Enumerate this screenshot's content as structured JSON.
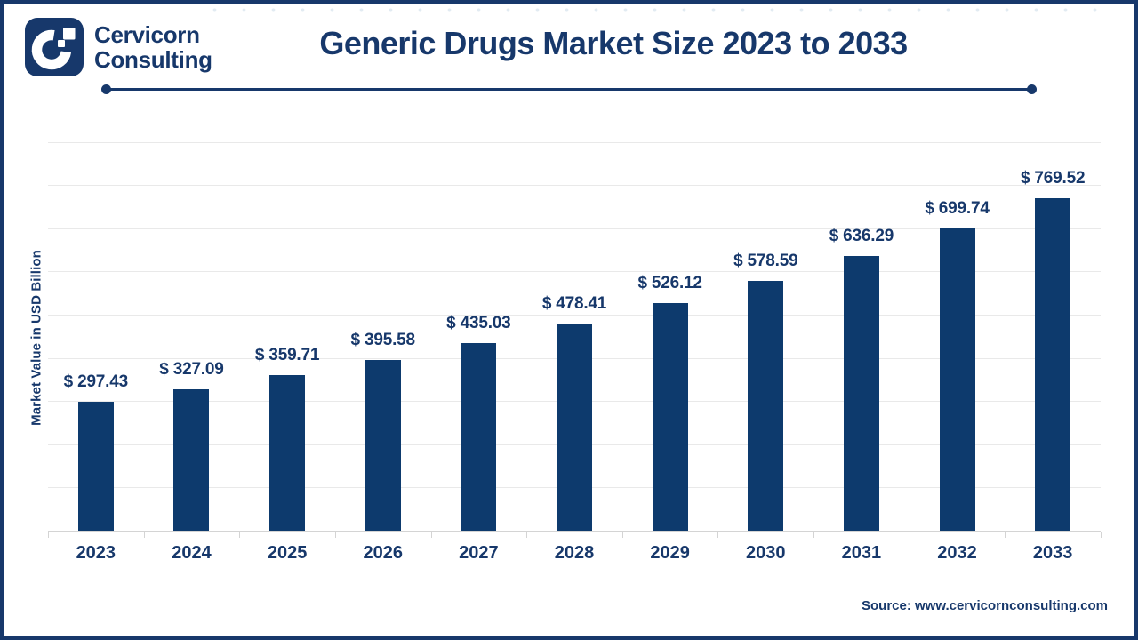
{
  "colors": {
    "navy": "#17386b",
    "bar": "#0d3a6d",
    "gridline": "#e9e9e9",
    "axis": "#d4d4d4",
    "bg": "#ffffff"
  },
  "header": {
    "logo_company_line1": "Cervicorn",
    "logo_company_line2": "Consulting",
    "title": "Generic Drugs Market Size 2023 to 2033"
  },
  "chart_data": {
    "type": "bar",
    "title": "Generic Drugs Market Size 2023 to 2033",
    "categories": [
      "2023",
      "2024",
      "2025",
      "2026",
      "2027",
      "2028",
      "2029",
      "2030",
      "2031",
      "2032",
      "2033"
    ],
    "values": [
      297.43,
      327.09,
      359.71,
      395.58,
      435.03,
      478.41,
      526.12,
      578.59,
      636.29,
      699.74,
      769.52
    ],
    "value_prefix": "$ ",
    "xlabel": "",
    "ylabel": "Market Value in USD Billion",
    "ylim": [
      0,
      900
    ],
    "gridline_step": 100,
    "grid": "horizontal-only",
    "legend": "none",
    "y_tick_labels_visible": false,
    "bar_color": "#0d3a6d"
  },
  "footer": {
    "source": "Source: www.cervicornconsulting.com"
  }
}
